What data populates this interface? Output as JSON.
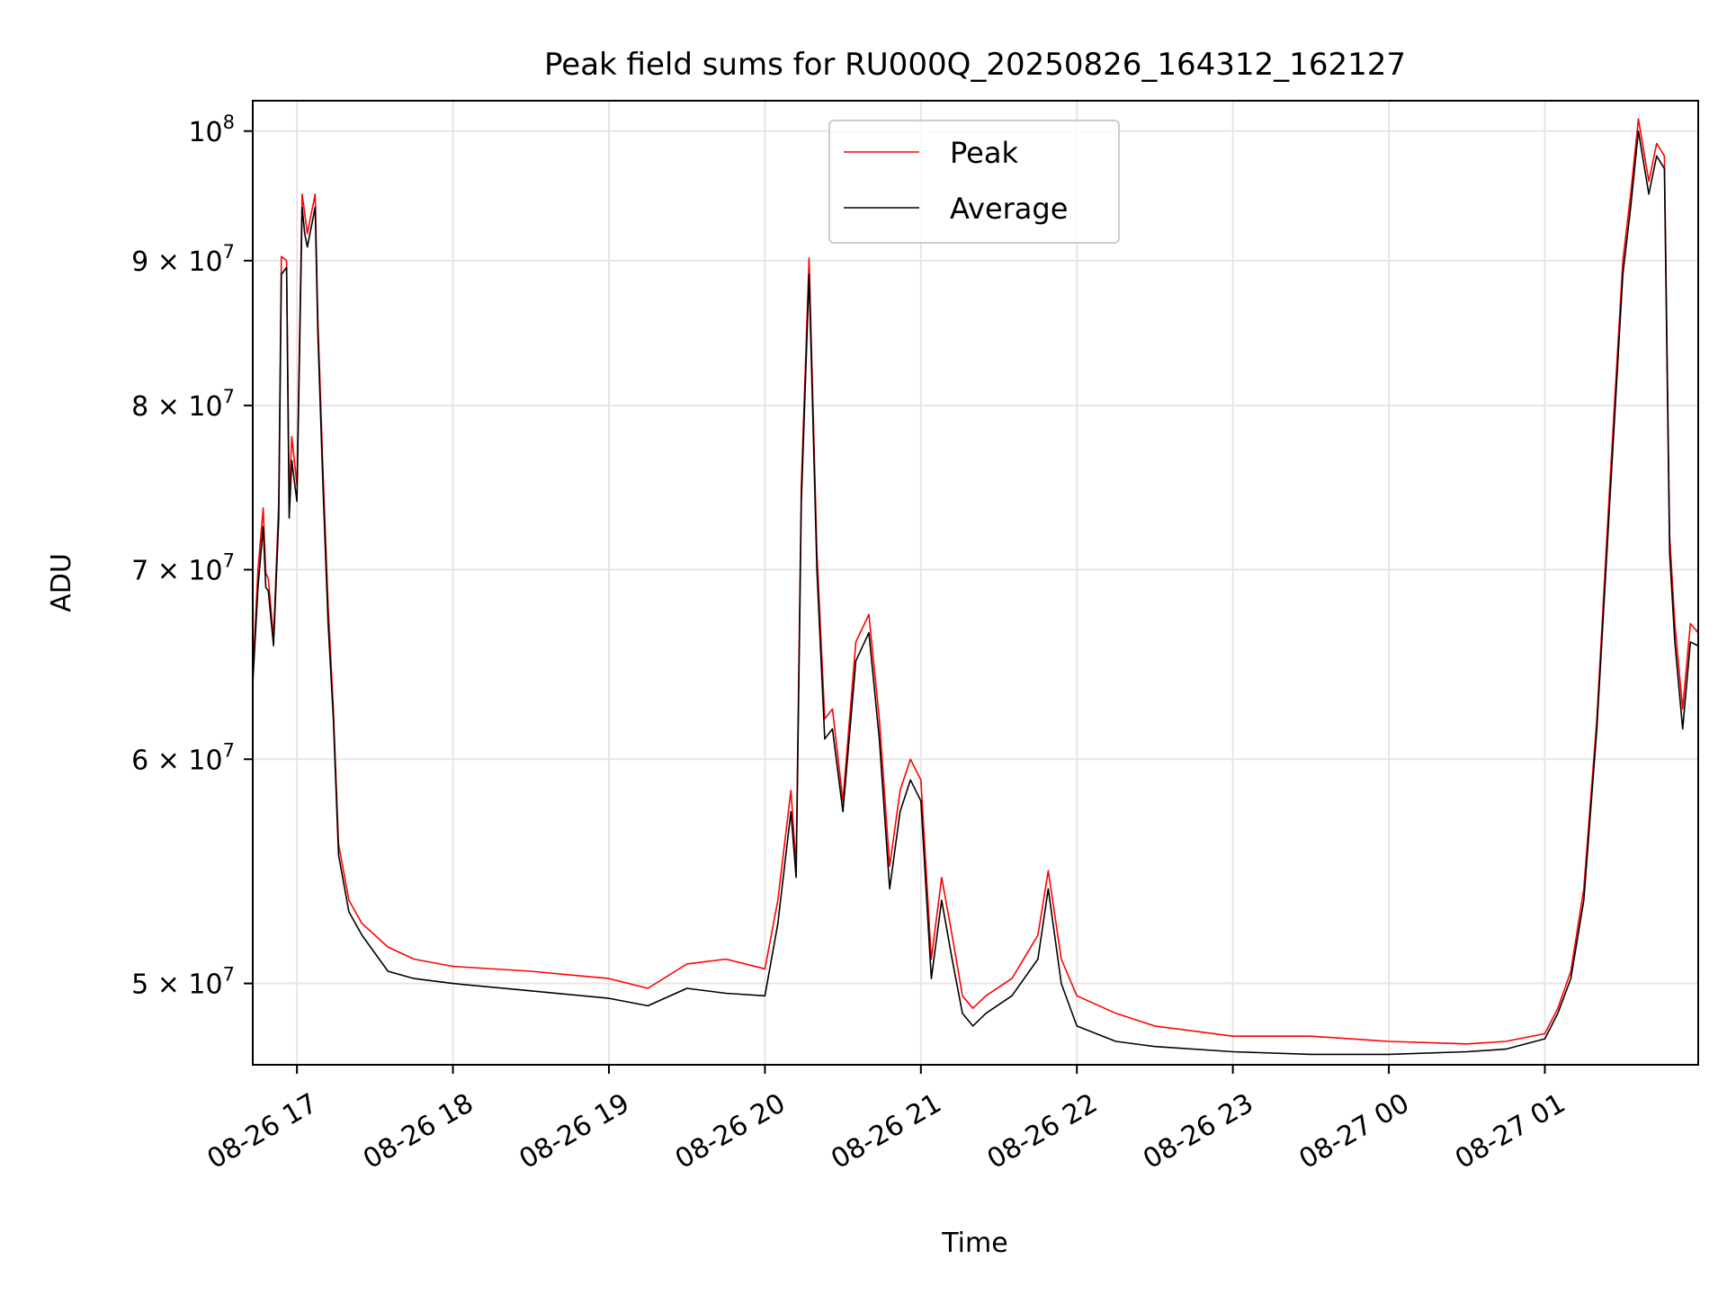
{
  "chart_data": {
    "type": "line",
    "title": "Peak field sums for RU000Q_20250826_164312_162127",
    "xlabel": "Time",
    "ylabel": "ADU",
    "x_ticks": [
      "08-26 17",
      "08-26 18",
      "08-26 19",
      "08-26 20",
      "08-26 21",
      "08-26 22",
      "08-26 23",
      "08-27 00",
      "08-27 01"
    ],
    "x_tick_times": [
      "2025-08-26 17:00",
      "2025-08-26 18:00",
      "2025-08-26 19:00",
      "2025-08-26 20:00",
      "2025-08-26 21:00",
      "2025-08-26 22:00",
      "2025-08-26 23:00",
      "2025-08-27 00:00",
      "2025-08-27 01:00"
    ],
    "xlim": [
      "2025-08-26 16:43",
      "2025-08-27 01:59"
    ],
    "y_scale": "log",
    "ylim": [
      46800000,
      102500000
    ],
    "y_ticks": [
      {
        "value": 50000000,
        "mantissa": "5",
        "exp": "7",
        "label": "5 × 10^7"
      },
      {
        "value": 60000000,
        "mantissa": "6",
        "exp": "7",
        "label": "6 × 10^7"
      },
      {
        "value": 70000000,
        "mantissa": "7",
        "exp": "7",
        "label": "7 × 10^7"
      },
      {
        "value": 80000000,
        "mantissa": "8",
        "exp": "7",
        "label": "8 × 10^7"
      },
      {
        "value": 90000000,
        "mantissa": "9",
        "exp": "7",
        "label": "9 × 10^7"
      },
      {
        "value": 100000000,
        "mantissa": "10",
        "exp": "8",
        "label": "10^8"
      }
    ],
    "grid": true,
    "legend_position": "top-center",
    "series": [
      {
        "name": "Peak",
        "color": "#ff0000",
        "x": [
          "2025-08-26 16:43",
          "2025-08-26 16:45",
          "2025-08-26 16:47",
          "2025-08-26 16:48",
          "2025-08-26 16:49",
          "2025-08-26 16:51",
          "2025-08-26 16:53",
          "2025-08-26 16:54",
          "2025-08-26 16:56",
          "2025-08-26 16:57",
          "2025-08-26 16:58",
          "2025-08-26 17:00",
          "2025-08-26 17:02",
          "2025-08-26 17:03",
          "2025-08-26 17:04",
          "2025-08-26 17:05",
          "2025-08-26 17:07",
          "2025-08-26 17:08",
          "2025-08-26 17:10",
          "2025-08-26 17:12",
          "2025-08-26 17:14",
          "2025-08-26 17:16",
          "2025-08-26 17:20",
          "2025-08-26 17:25",
          "2025-08-26 17:35",
          "2025-08-26 17:45",
          "2025-08-26 18:00",
          "2025-08-26 18:30",
          "2025-08-26 19:00",
          "2025-08-26 19:15",
          "2025-08-26 19:30",
          "2025-08-26 19:45",
          "2025-08-26 20:00",
          "2025-08-26 20:05",
          "2025-08-26 20:10",
          "2025-08-26 20:12",
          "2025-08-26 20:14",
          "2025-08-26 20:17",
          "2025-08-26 20:20",
          "2025-08-26 20:23",
          "2025-08-26 20:26",
          "2025-08-26 20:30",
          "2025-08-26 20:35",
          "2025-08-26 20:40",
          "2025-08-26 20:44",
          "2025-08-26 20:48",
          "2025-08-26 20:52",
          "2025-08-26 20:56",
          "2025-08-26 21:00",
          "2025-08-26 21:04",
          "2025-08-26 21:08",
          "2025-08-26 21:12",
          "2025-08-26 21:16",
          "2025-08-26 21:20",
          "2025-08-26 21:25",
          "2025-08-26 21:35",
          "2025-08-26 21:45",
          "2025-08-26 21:49",
          "2025-08-26 21:54",
          "2025-08-26 22:00",
          "2025-08-26 22:15",
          "2025-08-26 22:30",
          "2025-08-26 23:00",
          "2025-08-26 23:30",
          "2025-08-27 00:00",
          "2025-08-27 00:30",
          "2025-08-27 00:45",
          "2025-08-27 01:00",
          "2025-08-27 01:05",
          "2025-08-27 01:10",
          "2025-08-27 01:15",
          "2025-08-27 01:20",
          "2025-08-27 01:25",
          "2025-08-27 01:30",
          "2025-08-27 01:33",
          "2025-08-27 01:36",
          "2025-08-27 01:40",
          "2025-08-27 01:43",
          "2025-08-27 01:46",
          "2025-08-27 01:48",
          "2025-08-27 01:50",
          "2025-08-27 01:53",
          "2025-08-27 01:56",
          "2025-08-27 01:59"
        ],
        "y": [
          64200000,
          70000000,
          73600000,
          69800000,
          69500000,
          66200000,
          74000000,
          90300000,
          90000000,
          74000000,
          78000000,
          75000000,
          95000000,
          93500000,
          92000000,
          93000000,
          95000000,
          86000000,
          76000000,
          68000000,
          62500000,
          56000000,
          53500000,
          52500000,
          51500000,
          51000000,
          50700000,
          50500000,
          50200000,
          49800000,
          50800000,
          51000000,
          50600000,
          53500000,
          58500000,
          55000000,
          75000000,
          90200000,
          71000000,
          62000000,
          62500000,
          58000000,
          66000000,
          67500000,
          62000000,
          55000000,
          58500000,
          60000000,
          59000000,
          51000000,
          54500000,
          52000000,
          49500000,
          49000000,
          49500000,
          50200000,
          52000000,
          54800000,
          51000000,
          49500000,
          48800000,
          48300000,
          47900000,
          47900000,
          47700000,
          47600000,
          47700000,
          48000000,
          49000000,
          50500000,
          54000000,
          62000000,
          75000000,
          90000000,
          95000000,
          101000000,
          96000000,
          99000000,
          98000000,
          72000000,
          67000000,
          62500000,
          67000000,
          66500000
        ]
      },
      {
        "name": "Average",
        "color": "#000000",
        "x": [
          "2025-08-26 16:43",
          "2025-08-26 16:45",
          "2025-08-26 16:47",
          "2025-08-26 16:48",
          "2025-08-26 16:49",
          "2025-08-26 16:51",
          "2025-08-26 16:53",
          "2025-08-26 16:54",
          "2025-08-26 16:56",
          "2025-08-26 16:57",
          "2025-08-26 16:58",
          "2025-08-26 17:00",
          "2025-08-26 17:02",
          "2025-08-26 17:03",
          "2025-08-26 17:04",
          "2025-08-26 17:05",
          "2025-08-26 17:07",
          "2025-08-26 17:08",
          "2025-08-26 17:10",
          "2025-08-26 17:12",
          "2025-08-26 17:14",
          "2025-08-26 17:16",
          "2025-08-26 17:20",
          "2025-08-26 17:25",
          "2025-08-26 17:35",
          "2025-08-26 17:45",
          "2025-08-26 18:00",
          "2025-08-26 18:30",
          "2025-08-26 19:00",
          "2025-08-26 19:15",
          "2025-08-26 19:30",
          "2025-08-26 19:45",
          "2025-08-26 20:00",
          "2025-08-26 20:05",
          "2025-08-26 20:10",
          "2025-08-26 20:12",
          "2025-08-26 20:14",
          "2025-08-26 20:17",
          "2025-08-26 20:20",
          "2025-08-26 20:23",
          "2025-08-26 20:26",
          "2025-08-26 20:30",
          "2025-08-26 20:35",
          "2025-08-26 20:40",
          "2025-08-26 20:44",
          "2025-08-26 20:48",
          "2025-08-26 20:52",
          "2025-08-26 20:56",
          "2025-08-26 21:00",
          "2025-08-26 21:04",
          "2025-08-26 21:08",
          "2025-08-26 21:12",
          "2025-08-26 21:16",
          "2025-08-26 21:20",
          "2025-08-26 21:25",
          "2025-08-26 21:35",
          "2025-08-26 21:45",
          "2025-08-26 21:49",
          "2025-08-26 21:54",
          "2025-08-26 22:00",
          "2025-08-26 22:15",
          "2025-08-26 22:30",
          "2025-08-26 23:00",
          "2025-08-26 23:30",
          "2025-08-27 00:00",
          "2025-08-27 00:30",
          "2025-08-27 00:45",
          "2025-08-27 01:00",
          "2025-08-27 01:05",
          "2025-08-27 01:10",
          "2025-08-27 01:15",
          "2025-08-27 01:20",
          "2025-08-27 01:25",
          "2025-08-27 01:30",
          "2025-08-27 01:33",
          "2025-08-27 01:36",
          "2025-08-27 01:40",
          "2025-08-27 01:43",
          "2025-08-27 01:46",
          "2025-08-27 01:48",
          "2025-08-27 01:50",
          "2025-08-27 01:53",
          "2025-08-27 01:56",
          "2025-08-27 01:59"
        ],
        "y": [
          63800000,
          69000000,
          72500000,
          69000000,
          68800000,
          65800000,
          73000000,
          89000000,
          89500000,
          73000000,
          76500000,
          74000000,
          94000000,
          92000000,
          91000000,
          92000000,
          94000000,
          85000000,
          75000000,
          67000000,
          62000000,
          55500000,
          53000000,
          52000000,
          50500000,
          50200000,
          50000000,
          49700000,
          49400000,
          49100000,
          49800000,
          49600000,
          49500000,
          52500000,
          57500000,
          54500000,
          74000000,
          89000000,
          70000000,
          61000000,
          61500000,
          57500000,
          65000000,
          66500000,
          61000000,
          54000000,
          57500000,
          59000000,
          58000000,
          50200000,
          53500000,
          51000000,
          48800000,
          48300000,
          48800000,
          49500000,
          51000000,
          54000000,
          50000000,
          48300000,
          47700000,
          47500000,
          47300000,
          47200000,
          47200000,
          47300000,
          47400000,
          47800000,
          48800000,
          50200000,
          53500000,
          61500000,
          74000000,
          89000000,
          94000000,
          100000000,
          95000000,
          98000000,
          97000000,
          71000000,
          66000000,
          61500000,
          66000000,
          65800000
        ]
      }
    ]
  }
}
